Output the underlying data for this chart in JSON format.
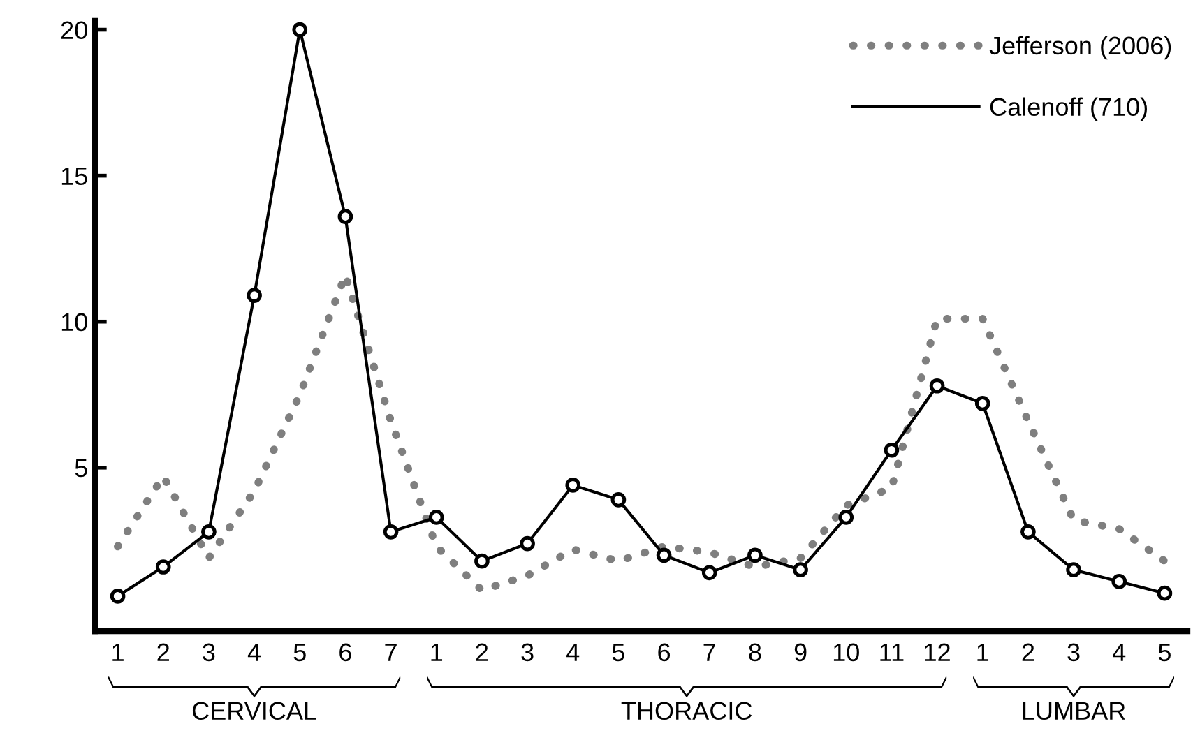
{
  "chart_data": {
    "type": "line",
    "categories": [
      "1",
      "2",
      "3",
      "4",
      "5",
      "6",
      "7",
      "1",
      "2",
      "3",
      "4",
      "5",
      "6",
      "7",
      "8",
      "9",
      "10",
      "11",
      "12",
      "1",
      "2",
      "3",
      "4",
      "5"
    ],
    "series": [
      {
        "name": "Jefferson (2006)",
        "color": "#7f7f7f",
        "line_style": "dotted",
        "marker": "none",
        "values": [
          2.3,
          4.7,
          1.9,
          4.2,
          7.5,
          11.6,
          6.6,
          2.3,
          0.8,
          1.3,
          2.2,
          1.8,
          2.3,
          2.1,
          1.6,
          1.9,
          3.7,
          4.3,
          10.1,
          10.1,
          6.6,
          3.2,
          2.9,
          1.8
        ]
      },
      {
        "name": "Calenoff (710)",
        "color": "#000000",
        "line_style": "solid",
        "marker": "circle",
        "values": [
          0.6,
          1.6,
          2.8,
          10.9,
          20,
          13.6,
          2.8,
          3.3,
          1.8,
          2.4,
          4.4,
          3.9,
          2.0,
          1.4,
          2.0,
          1.5,
          3.3,
          5.6,
          7.8,
          7.2,
          2.8,
          1.5,
          1.1,
          0.7
        ]
      }
    ],
    "ylim": [
      -0.6,
      20.3
    ],
    "yticks": [
      5,
      10,
      15,
      20
    ],
    "grid": false,
    "legend": "top right",
    "annotations": [
      "CERVICAL",
      "THORACIC",
      "LUMBAR"
    ]
  }
}
